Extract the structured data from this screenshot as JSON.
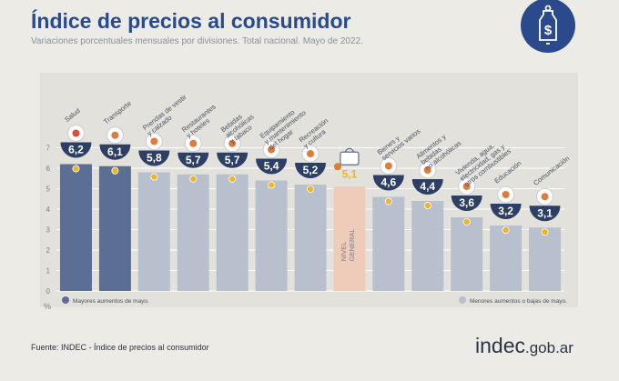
{
  "header": {
    "title": "Índice de precios al consumidor",
    "subtitle": "Variaciones porcentuales mensuales por divisiones. Total nacional. Mayo de 2022."
  },
  "footer": {
    "source": "Fuente: INDEC - Índice de precios al consumidor",
    "logo_main": "indec",
    "logo_domain": ".gob.ar"
  },
  "legend": {
    "high": "Mayores aumentos de mayo.",
    "low": "Menores aumentos o bajas de mayo."
  },
  "colors": {
    "title": "#2a4a8c",
    "high_bar": "#5b6e93",
    "low_bar": "#b8bfcd",
    "general_bar": "#efcbb9",
    "badge_navy": "#2e3f66",
    "dot_orange": "#f0b429",
    "general_value": "#f0b429",
    "panel": "#e2e1db",
    "badge_bg": "#2a4a8c"
  },
  "chart_data": {
    "type": "bar",
    "title": "Índice de precios al consumidor",
    "ylabel": "%",
    "ylim": [
      0,
      7
    ],
    "yticks": [
      0,
      1,
      2,
      3,
      4,
      5,
      6,
      7
    ],
    "categories": [
      "Salud",
      "Transporte",
      "Prendas de vestir y calzado",
      "Restaurantes y hoteles",
      "Bebidas alcohólicas y tabaco",
      "Equipamiento y mantenimiento del hogar",
      "Recreación y cultura",
      "NIVEL GENERAL",
      "Bienes y servicios varios",
      "Alimentos y bebidas no alcohólicas",
      "Vivienda, agua, electricidad, gas y otros combustibles",
      "Educación",
      "Comunicación"
    ],
    "values": [
      6.2,
      6.1,
      5.8,
      5.7,
      5.7,
      5.4,
      5.2,
      5.1,
      4.6,
      4.4,
      3.6,
      3.2,
      3.1
    ],
    "value_labels": [
      "6,2",
      "6,1",
      "5,8",
      "5,7",
      "5,7",
      "5,4",
      "5,2",
      "5,1",
      "4,6",
      "4,4",
      "3,6",
      "3,2",
      "3,1"
    ],
    "groups": [
      "high",
      "high",
      "low",
      "low",
      "low",
      "low",
      "low",
      "general",
      "low",
      "low",
      "low",
      "low",
      "low"
    ],
    "label_lines": [
      [
        "Salud"
      ],
      [
        "Transporte"
      ],
      [
        "Prendas de vestir",
        "y calzado"
      ],
      [
        "Restaurantes",
        "y hoteles"
      ],
      [
        "Bebidas",
        "alcohólicas",
        "y tabaco"
      ],
      [
        "Equipamiento",
        "y mantenimiento",
        "del hogar"
      ],
      [
        "Recreación",
        "y cultura"
      ],
      [
        "NIVEL",
        "GENERAL"
      ],
      [
        "Bienes y",
        "servicios varios"
      ],
      [
        "Alimentos y",
        "bebidas",
        "no alcohólicas"
      ],
      [
        "Vivienda, agua,",
        "electricidad, gas y",
        "otros combustibles"
      ],
      [
        "Educación"
      ],
      [
        "Comunicación"
      ]
    ],
    "icons": [
      "medical-cross-icon",
      "bus-icon",
      "shirt-icon",
      "cup-icon",
      "bottle-icon",
      "tv-icon",
      "umbrella-icon",
      "shopping-basket-icon",
      "comb-icon",
      "food-plate-icon",
      "lightbulb-icon",
      "book-icon",
      "phone-icon"
    ],
    "legend_position": "bottom"
  }
}
